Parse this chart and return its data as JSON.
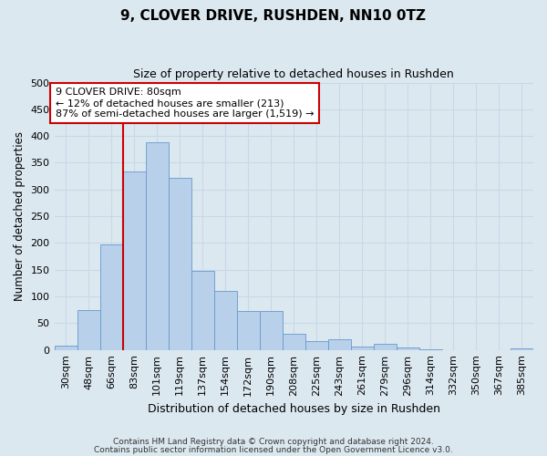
{
  "title": "9, CLOVER DRIVE, RUSHDEN, NN10 0TZ",
  "subtitle": "Size of property relative to detached houses in Rushden",
  "xlabel": "Distribution of detached houses by size in Rushden",
  "ylabel": "Number of detached properties",
  "footnote1": "Contains HM Land Registry data © Crown copyright and database right 2024.",
  "footnote2": "Contains public sector information licensed under the Open Government Licence v3.0.",
  "categories": [
    "30sqm",
    "48sqm",
    "66sqm",
    "83sqm",
    "101sqm",
    "119sqm",
    "137sqm",
    "154sqm",
    "172sqm",
    "190sqm",
    "208sqm",
    "225sqm",
    "243sqm",
    "261sqm",
    "279sqm",
    "296sqm",
    "314sqm",
    "332sqm",
    "350sqm",
    "367sqm",
    "385sqm"
  ],
  "values": [
    8,
    75,
    197,
    333,
    388,
    322,
    148,
    110,
    72,
    72,
    30,
    17,
    20,
    6,
    12,
    5,
    2,
    0,
    0,
    0,
    3
  ],
  "bar_color": "#b8d0ea",
  "bar_edge_color": "#6699cc",
  "annotation_box_text": "9 CLOVER DRIVE: 80sqm\n← 12% of detached houses are smaller (213)\n87% of semi-detached houses are larger (1,519) →",
  "vline_index": 3,
  "vline_color": "#cc0000",
  "annotation_box_color": "#cc0000",
  "annotation_box_bg": "#ffffff",
  "ylim": [
    0,
    500
  ],
  "yticks": [
    0,
    50,
    100,
    150,
    200,
    250,
    300,
    350,
    400,
    450,
    500
  ],
  "grid_color": "#c8d8e8",
  "background_color": "#dce8f0",
  "title_fontsize": 11,
  "subtitle_fontsize": 9,
  "bar_width": 1.0
}
